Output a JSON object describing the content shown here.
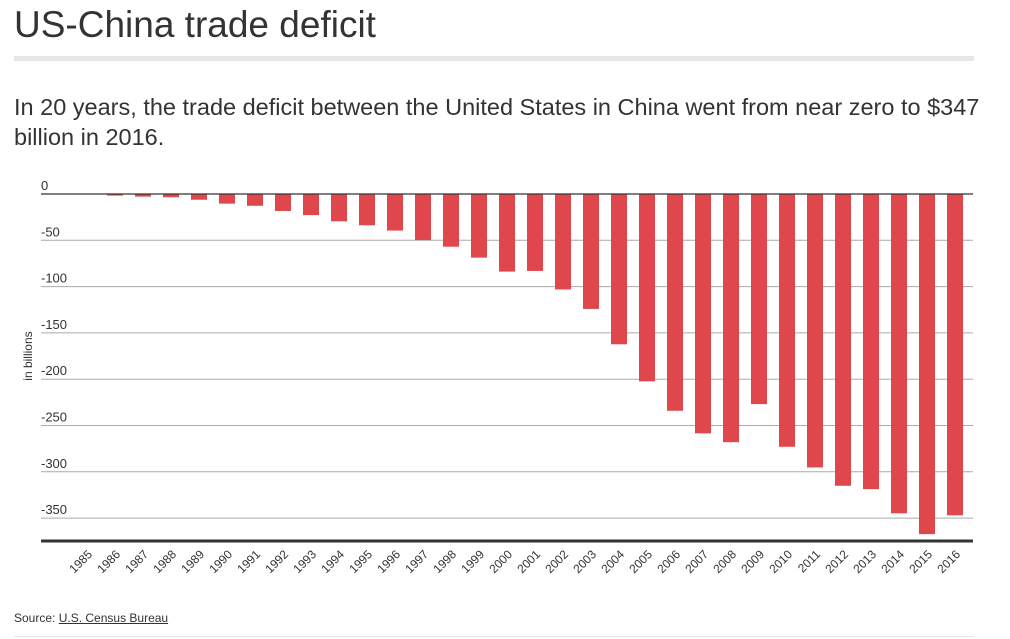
{
  "header": {
    "title": "US-China trade deficit",
    "subtitle": "In 20 years, the trade deficit between the United States in China went from near zero to $347 billion in 2016."
  },
  "footer": {
    "source_label": "Source:",
    "source_link": "U.S. Census Bureau"
  },
  "chart_data": {
    "type": "bar",
    "title": "US-China trade deficit",
    "xlabel": "",
    "ylabel": "in billions",
    "ylim": [
      -375,
      0
    ],
    "yticks": [
      0,
      -50,
      -100,
      -150,
      -200,
      -250,
      -300,
      -350
    ],
    "grid": true,
    "bar_color": "#e0474c",
    "categories": [
      "1985",
      "1986",
      "1987",
      "1988",
      "1989",
      "1990",
      "1991",
      "1992",
      "1993",
      "1994",
      "1995",
      "1996",
      "1997",
      "1998",
      "1999",
      "2000",
      "2001",
      "2002",
      "2003",
      "2004",
      "2005",
      "2006",
      "2007",
      "2008",
      "2009",
      "2010",
      "2011",
      "2012",
      "2013",
      "2014",
      "2015",
      "2016"
    ],
    "values": [
      0,
      -1.7,
      -2.8,
      -3.5,
      -6.2,
      -10.4,
      -12.7,
      -18.3,
      -22.8,
      -29.5,
      -33.8,
      -39.5,
      -49.7,
      -56.9,
      -68.7,
      -83.8,
      -83.1,
      -103.1,
      -124.1,
      -162.3,
      -202.3,
      -234.1,
      -258.5,
      -268.0,
      -226.9,
      -273.0,
      -295.3,
      -315.1,
      -318.7,
      -344.8,
      -367.3,
      -347.0
    ]
  }
}
